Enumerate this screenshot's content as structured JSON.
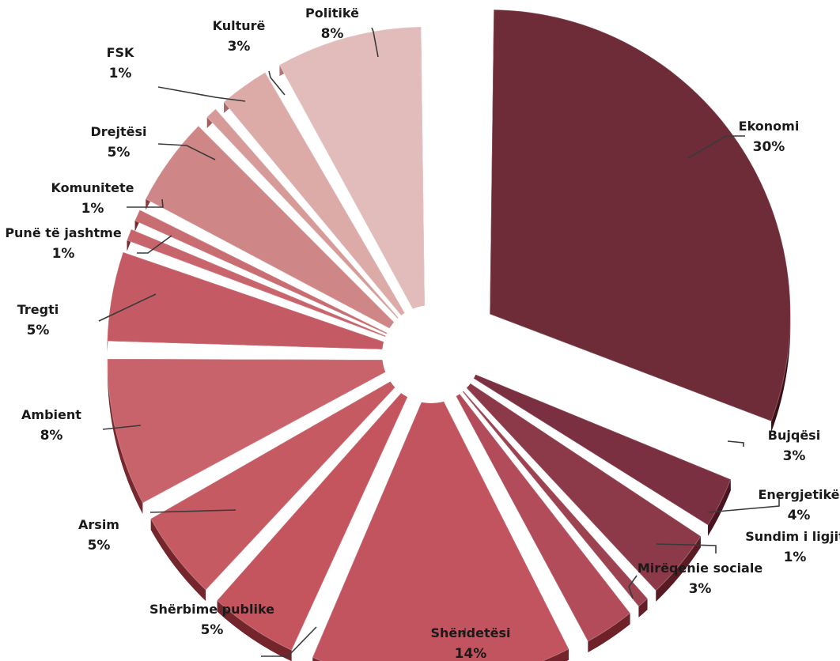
{
  "chart_data": {
    "type": "pie",
    "title": "",
    "categories": [
      "Ekonomi",
      "Bujqësi",
      "Energjetikë",
      "Sundim i ligjit",
      "Mirëqenie sociale",
      "Shëndetësi",
      "Shërbime publike",
      "Arsim",
      "Ambient",
      "Tregti",
      "Punë të jashtme",
      "Komunitete",
      "Drejtësi",
      "FSK",
      "Kulturë",
      "Politikë"
    ],
    "values": [
      30,
      3,
      4,
      1,
      3,
      14,
      5,
      5,
      8,
      5,
      1,
      1,
      5,
      1,
      3,
      8
    ],
    "labels": [
      "30%",
      "3%",
      "4%",
      "1%",
      "3%",
      "14%",
      "5%",
      "5%",
      "8%",
      "5%",
      "1%",
      "1%",
      "5%",
      "1%",
      "3%",
      "8%"
    ],
    "exploded": true,
    "style": "3d",
    "colors": [
      "#6e2c38",
      "#7a3040",
      "#8c3a49",
      "#9c4250",
      "#b24c5a",
      "#c2545f",
      "#c4555f",
      "#c65a63",
      "#c9636b",
      "#c45a64",
      "#c8646b",
      "#c86e72",
      "#cf8686",
      "#d69b99",
      "#dcaba8",
      "#e2bcba"
    ]
  }
}
